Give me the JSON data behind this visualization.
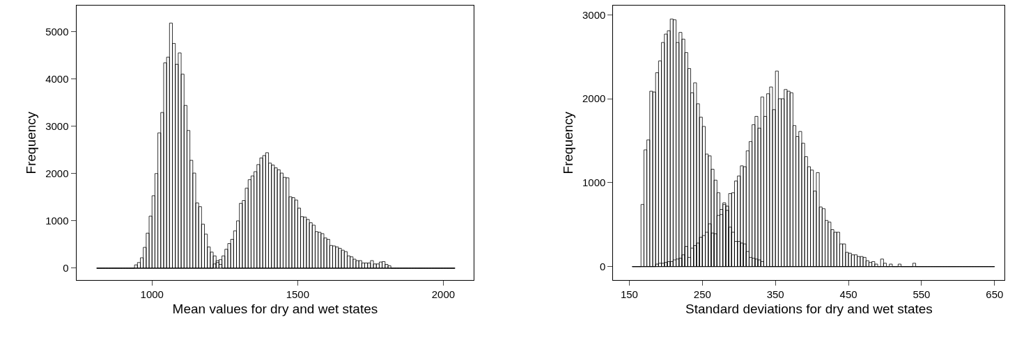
{
  "chart_data": [
    {
      "type": "histogram",
      "xlabel": "Mean values for dry and wet states",
      "ylabel": "Frequency",
      "xlim": [
        740,
        2105
      ],
      "ylim": [
        -250,
        5550
      ],
      "xticks": [
        1000,
        1500,
        2000
      ],
      "yticks": [
        0,
        1000,
        2000,
        3000,
        4000,
        5000
      ],
      "grid": false,
      "bins": [
        810,
        820,
        830,
        840,
        850,
        860,
        870,
        880,
        890,
        900,
        910,
        920,
        930,
        940,
        950,
        960,
        970,
        980,
        990,
        1000,
        1010,
        1020,
        1030,
        1040,
        1050,
        1060,
        1070,
        1080,
        1090,
        1100,
        1110,
        1120,
        1130,
        1140,
        1150,
        1160,
        1170,
        1180,
        1190,
        1200,
        1210,
        1220,
        1230,
        1240,
        1250,
        1260,
        1270,
        1280,
        1290,
        1300,
        1310,
        1320,
        1330,
        1340,
        1350,
        1360,
        1370,
        1380,
        1390,
        1400,
        1410,
        1420,
        1430,
        1440,
        1450,
        1460,
        1470,
        1480,
        1490,
        1500,
        1510,
        1520,
        1530,
        1540,
        1550,
        1560,
        1570,
        1580,
        1590,
        1600,
        1610,
        1620,
        1630,
        1640,
        1650,
        1660,
        1670,
        1680,
        1690,
        1700,
        1710,
        1720,
        1730,
        1740,
        1750,
        1760,
        1770,
        1780,
        1790,
        1800,
        1810,
        1820,
        1830,
        1840,
        1850,
        1860,
        1870,
        1880,
        1890,
        1900,
        1910,
        1920,
        1930,
        1940,
        1950,
        1960,
        1970,
        1980,
        1990,
        2000,
        2010,
        2020,
        2030,
        2040
      ],
      "series": [
        {
          "color": "#000000",
          "values": [
            0,
            0,
            0,
            0,
            0,
            0,
            0,
            0,
            0,
            0,
            0,
            0,
            0,
            70,
            120,
            220,
            440,
            740,
            1100,
            1530,
            2000,
            2860,
            3290,
            4340,
            4460,
            5180,
            4750,
            4310,
            4550,
            4100,
            3440,
            2910,
            2280,
            2010,
            1380,
            1300,
            930,
            720,
            450,
            340,
            260,
            120,
            80,
            0,
            0,
            0,
            0,
            0,
            0,
            0,
            0,
            0,
            0,
            0,
            0,
            0,
            0,
            0,
            0,
            0,
            0,
            0,
            0,
            0,
            0,
            0,
            0,
            0,
            0,
            0,
            0,
            0,
            0,
            0,
            0,
            0,
            0,
            0,
            0,
            0,
            0,
            0,
            0,
            0,
            0,
            0,
            0,
            0,
            0,
            0,
            0,
            0,
            0,
            0,
            0,
            0,
            0,
            0,
            0,
            0,
            0,
            0,
            0,
            0,
            0,
            0,
            0,
            0,
            0,
            0,
            0,
            0,
            0,
            0,
            0,
            0,
            0,
            0,
            0,
            0,
            0,
            0,
            0
          ]
        },
        {
          "color": "#000000",
          "values": [
            0,
            0,
            0,
            0,
            0,
            0,
            0,
            0,
            0,
            0,
            0,
            0,
            0,
            0,
            0,
            0,
            0,
            0,
            0,
            0,
            0,
            0,
            0,
            0,
            0,
            0,
            0,
            0,
            0,
            0,
            0,
            0,
            0,
            0,
            0,
            0,
            0,
            0,
            0,
            0,
            90,
            160,
            180,
            260,
            400,
            520,
            610,
            790,
            1000,
            1370,
            1430,
            1690,
            1870,
            1950,
            2040,
            2190,
            2330,
            2380,
            2440,
            2220,
            2180,
            2120,
            2080,
            2010,
            1920,
            1910,
            1510,
            1490,
            1440,
            1270,
            1090,
            1080,
            1030,
            960,
            910,
            770,
            760,
            730,
            640,
            610,
            480,
            470,
            450,
            420,
            380,
            350,
            260,
            240,
            190,
            160,
            160,
            110,
            110,
            110,
            160,
            90,
            90,
            130,
            140,
            80,
            50,
            0,
            0,
            0,
            0,
            0,
            0,
            0,
            0,
            0,
            0,
            0,
            0,
            0,
            0,
            0,
            0,
            0,
            0,
            0,
            0,
            0,
            0
          ]
        }
      ]
    },
    {
      "type": "histogram",
      "xlabel": "Standard deviations for dry and wet states",
      "ylabel": "Frequency",
      "xlim": [
        128,
        664
      ],
      "ylim": [
        -160,
        3110
      ],
      "xticks": [
        150,
        250,
        350,
        450,
        550,
        650
      ],
      "yticks": [
        0,
        1000,
        2000,
        3000
      ],
      "grid": false,
      "bins": [
        154,
        158,
        162,
        166,
        170,
        174,
        178,
        182,
        186,
        190,
        194,
        198,
        202,
        206,
        210,
        214,
        218,
        222,
        226,
        230,
        234,
        238,
        242,
        246,
        250,
        254,
        258,
        262,
        266,
        270,
        274,
        278,
        282,
        286,
        290,
        294,
        298,
        302,
        306,
        310,
        314,
        318,
        322,
        326,
        330,
        334,
        338,
        342,
        346,
        350,
        354,
        358,
        362,
        366,
        370,
        374,
        378,
        382,
        386,
        390,
        394,
        398,
        402,
        406,
        410,
        414,
        418,
        422,
        426,
        430,
        434,
        438,
        442,
        446,
        450,
        454,
        458,
        462,
        466,
        470,
        474,
        478,
        482,
        486,
        490,
        494,
        498,
        502,
        506,
        510,
        514,
        518,
        522,
        526,
        530,
        534,
        538,
        542,
        546,
        550,
        554,
        558,
        562,
        566,
        570,
        574,
        578,
        582,
        586,
        590,
        594,
        598,
        602,
        606,
        610,
        614,
        618,
        622,
        626,
        630,
        634,
        638,
        642,
        646,
        650
      ],
      "series": [
        {
          "color": "#000000",
          "values": [
            0,
            0,
            0,
            740,
            1390,
            1510,
            2090,
            2080,
            2310,
            2450,
            2670,
            2770,
            2810,
            2950,
            2940,
            2670,
            2790,
            2710,
            2550,
            2360,
            2070,
            2190,
            1940,
            1780,
            1670,
            1340,
            1320,
            1160,
            1030,
            880,
            680,
            760,
            670,
            470,
            410,
            300,
            300,
            280,
            270,
            180,
            110,
            100,
            90,
            80,
            60,
            0,
            0,
            0,
            0,
            0,
            0,
            0,
            0,
            0,
            0,
            0,
            0,
            0,
            0,
            0,
            0,
            0,
            0,
            0,
            0,
            0,
            0,
            0,
            0,
            0,
            0,
            0,
            0,
            0,
            0,
            0,
            0,
            0,
            0,
            0,
            0,
            0,
            0,
            0,
            0,
            0,
            0,
            0,
            0,
            0,
            0,
            0,
            0,
            0,
            0,
            0,
            0,
            0,
            0,
            0,
            0,
            0,
            0,
            0,
            0,
            0,
            0,
            0,
            0,
            0,
            0,
            0,
            0,
            0,
            0,
            0,
            0,
            0,
            0,
            0,
            0,
            0,
            0,
            0
          ]
        },
        {
          "color": "#000000",
          "values": [
            0,
            0,
            0,
            0,
            0,
            0,
            0,
            0,
            30,
            40,
            40,
            50,
            60,
            60,
            80,
            90,
            100,
            140,
            240,
            110,
            220,
            250,
            280,
            350,
            370,
            410,
            510,
            400,
            390,
            610,
            620,
            740,
            720,
            870,
            880,
            1020,
            1080,
            1200,
            1190,
            1380,
            1490,
            1690,
            1790,
            1650,
            2020,
            1790,
            2060,
            2140,
            1870,
            2330,
            2000,
            2000,
            2110,
            2090,
            2070,
            1680,
            1550,
            1610,
            1470,
            1310,
            1190,
            1150,
            900,
            1120,
            710,
            690,
            550,
            530,
            440,
            410,
            410,
            270,
            270,
            170,
            160,
            140,
            140,
            120,
            120,
            110,
            70,
            50,
            60,
            30,
            0,
            90,
            40,
            0,
            30,
            0,
            0,
            30,
            0,
            0,
            0,
            0,
            40,
            0,
            0,
            0,
            0,
            0,
            0,
            0,
            0,
            0,
            0,
            0,
            0,
            0,
            0,
            0,
            0,
            0,
            0,
            0,
            0,
            0,
            0,
            0,
            0,
            0,
            0,
            0
          ]
        }
      ]
    }
  ]
}
